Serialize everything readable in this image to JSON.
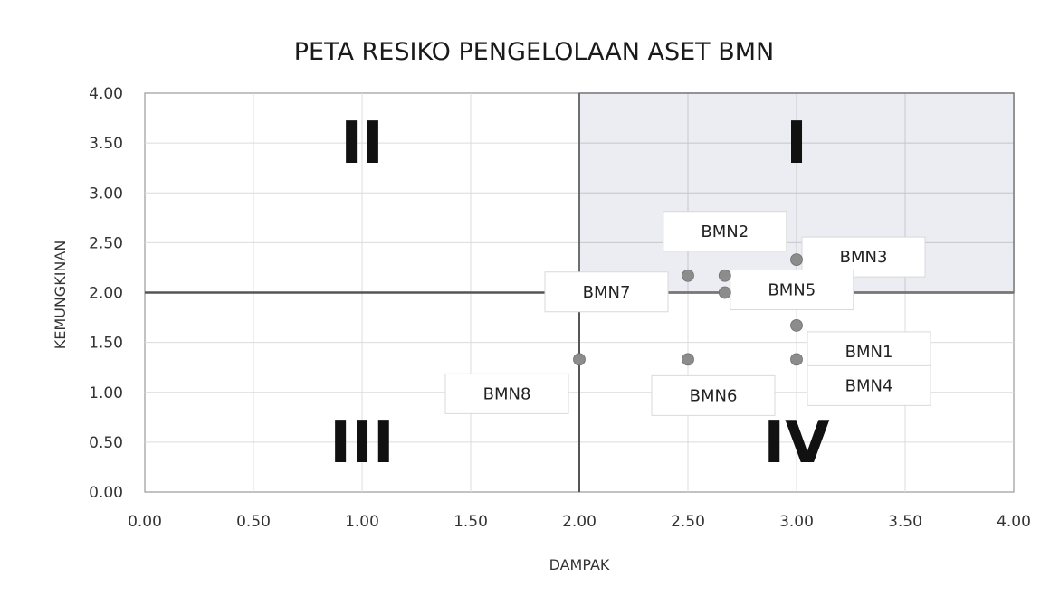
{
  "chart_data": {
    "type": "scatter",
    "title": "PETA RESIKO PENGELOLAAN ASET BMN",
    "xlabel": "DAMPAK",
    "ylabel": "KEMUNGKINAN",
    "xlim": [
      0,
      4
    ],
    "ylim": [
      0,
      4
    ],
    "x_ticks": [
      "0.00",
      "0.50",
      "1.00",
      "1.50",
      "2.00",
      "2.50",
      "3.00",
      "3.50",
      "4.00"
    ],
    "y_ticks": [
      "0.00",
      "0.50",
      "1.00",
      "1.50",
      "2.00",
      "2.50",
      "3.00",
      "3.50",
      "4.00"
    ],
    "grid": true,
    "divider_x": 2,
    "divider_y": 2,
    "quadrants": [
      {
        "label": "I",
        "x": 3.0,
        "y": 3.5
      },
      {
        "label": "II",
        "x": 1.0,
        "y": 3.5
      },
      {
        "label": "III",
        "x": 1.0,
        "y": 0.5
      },
      {
        "label": "IV",
        "x": 3.0,
        "y": 0.5
      }
    ],
    "highlight_quadrant": "I",
    "highlight_color": "#ecedf2",
    "point_color": "#8c8c8c",
    "points": [
      {
        "label": "BMN1",
        "x": 3.0,
        "y": 1.67,
        "label_pos": "right-below"
      },
      {
        "label": "BMN2",
        "x": 2.67,
        "y": 2.17,
        "label_pos": "above"
      },
      {
        "label": "BMN3",
        "x": 3.0,
        "y": 2.33,
        "label_pos": "right"
      },
      {
        "label": "BMN4",
        "x": 3.0,
        "y": 1.33,
        "label_pos": "right-below"
      },
      {
        "label": "BMN5",
        "x": 2.67,
        "y": 2.0,
        "label_pos": "right"
      },
      {
        "label": "BMN6",
        "x": 2.5,
        "y": 1.33,
        "label_pos": "below"
      },
      {
        "label": "BMN7",
        "x": 2.5,
        "y": 2.17,
        "label_pos": "left"
      },
      {
        "label": "BMN8",
        "x": 2.0,
        "y": 1.33,
        "label_pos": "left-below"
      }
    ]
  }
}
